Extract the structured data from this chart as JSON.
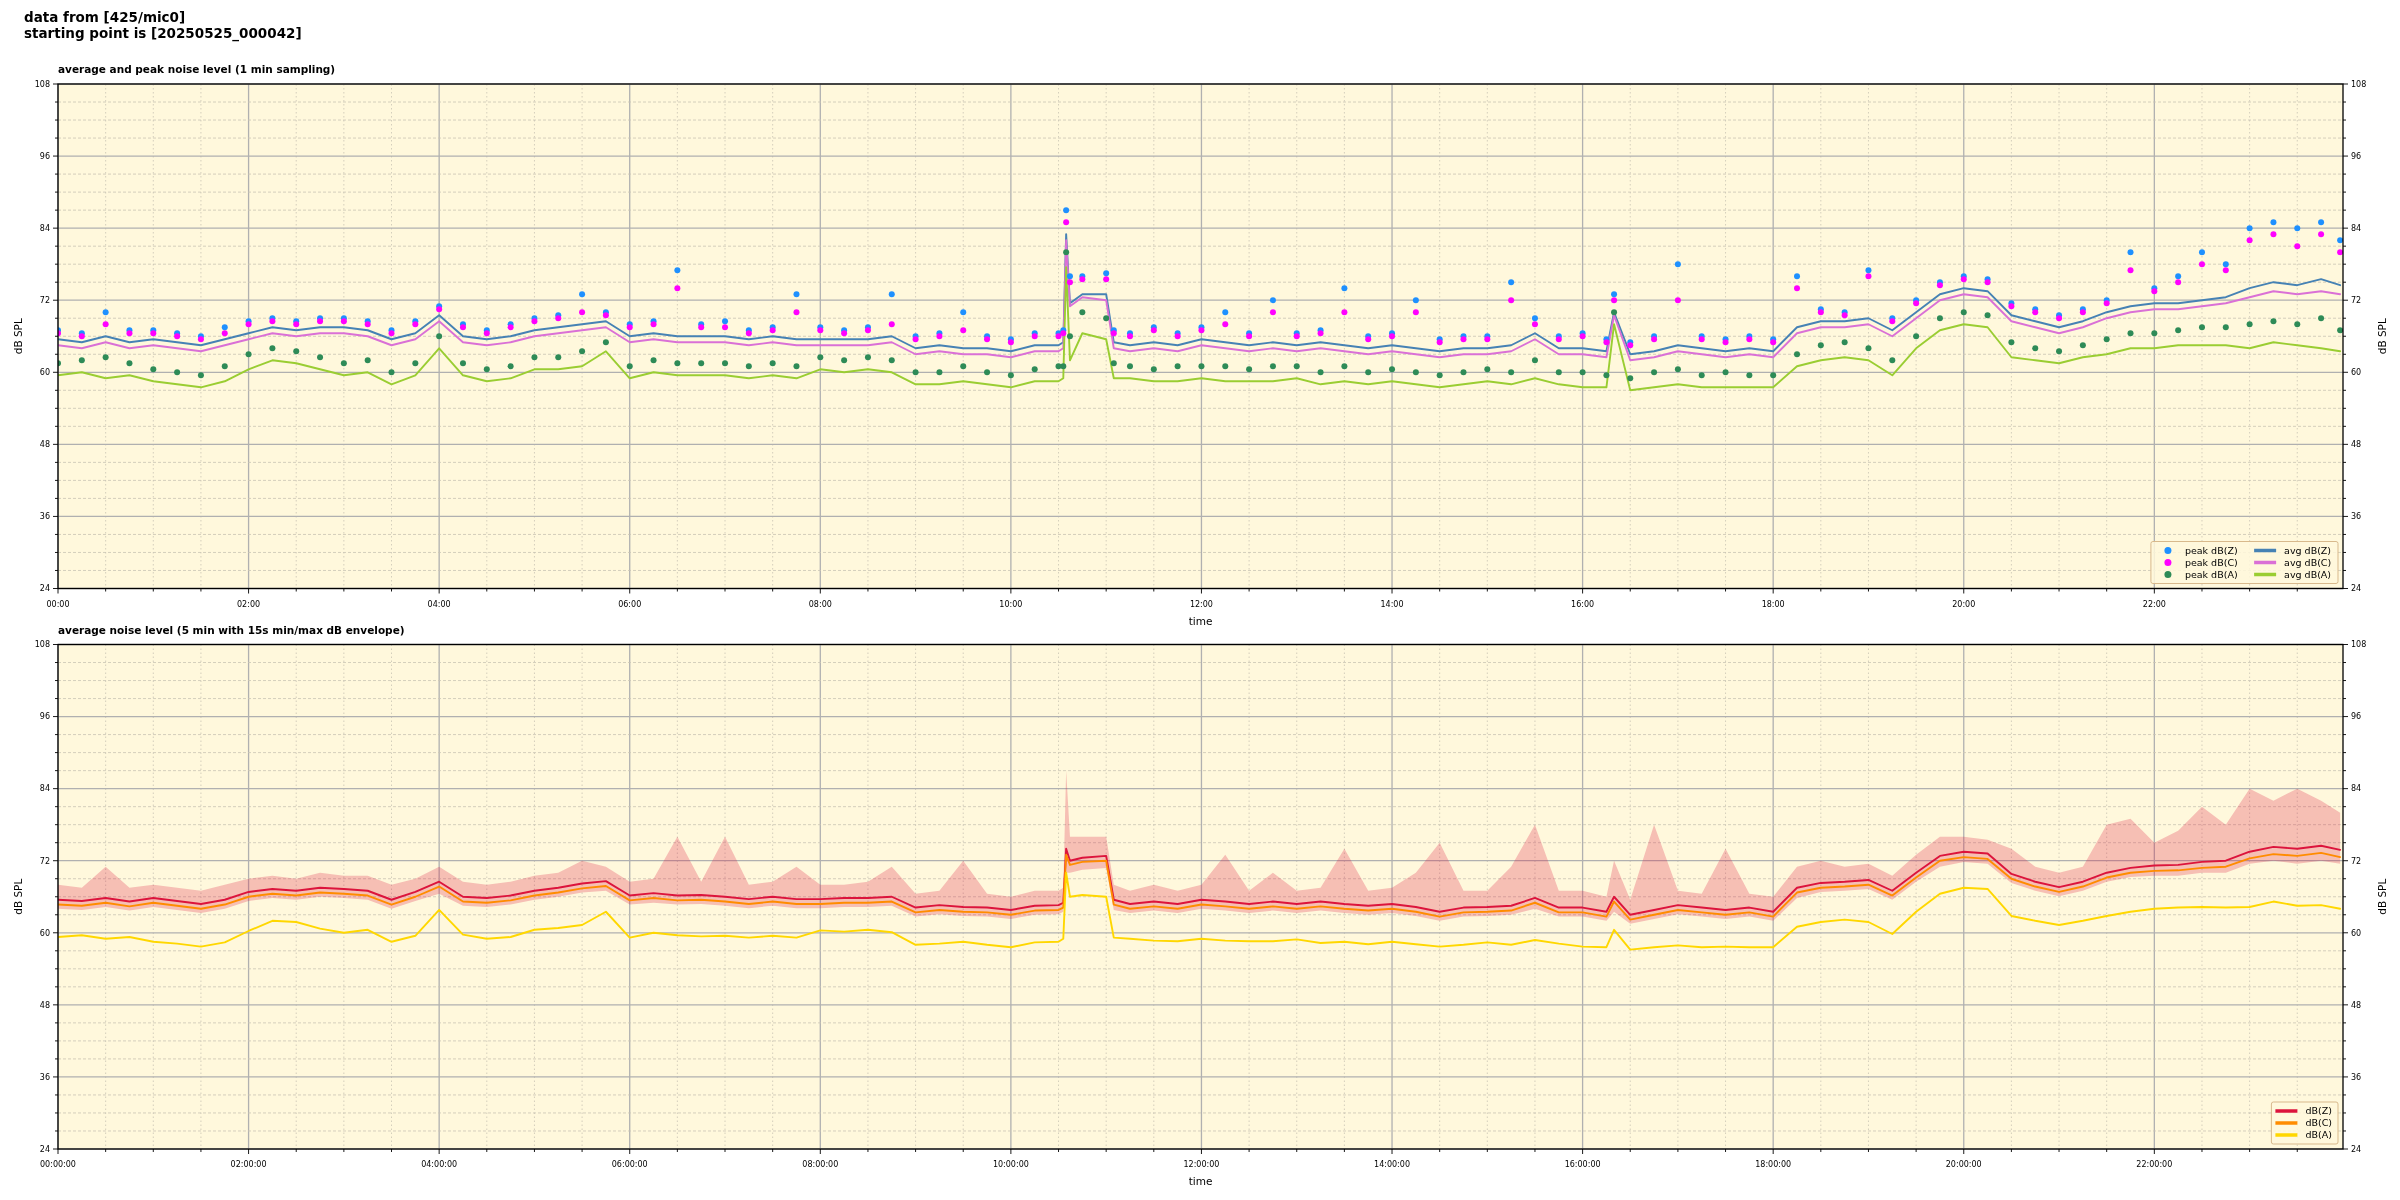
{
  "chart_data": [
    {
      "type": "line",
      "title": "average and peak noise level (1 min sampling)",
      "annotations": [
        "data from [425/mic0]",
        "starting point is [20250525_000042]"
      ],
      "xlabel": "time",
      "ylabel": "dB SPL",
      "y2label": "dB SPL",
      "xlim": [
        0,
        23.98
      ],
      "xticks": [
        {
          "value": 0,
          "label": "00:00"
        },
        {
          "value": 0.5,
          "label": null
        },
        {
          "value": 1,
          "label": null
        },
        {
          "value": 1.5,
          "label": null
        },
        {
          "value": 2,
          "label": "02:00"
        },
        {
          "value": 2.5,
          "label": null
        },
        {
          "value": 3,
          "label": null
        },
        {
          "value": 3.5,
          "label": null
        },
        {
          "value": 4,
          "label": "04:00"
        },
        {
          "value": 4.5,
          "label": null
        },
        {
          "value": 5,
          "label": null
        },
        {
          "value": 5.5,
          "label": null
        },
        {
          "value": 6,
          "label": "06:00"
        },
        {
          "value": 6.5,
          "label": null
        },
        {
          "value": 7,
          "label": null
        },
        {
          "value": 7.5,
          "label": null
        },
        {
          "value": 8,
          "label": "08:00"
        },
        {
          "value": 8.5,
          "label": null
        },
        {
          "value": 9,
          "label": null
        },
        {
          "value": 9.5,
          "label": null
        },
        {
          "value": 10,
          "label": "10:00"
        },
        {
          "value": 10.5,
          "label": null
        },
        {
          "value": 11,
          "label": null
        },
        {
          "value": 11.5,
          "label": null
        },
        {
          "value": 12,
          "label": "12:00"
        },
        {
          "value": 12.5,
          "label": null
        },
        {
          "value": 13,
          "label": null
        },
        {
          "value": 13.5,
          "label": null
        },
        {
          "value": 14,
          "label": "14:00"
        },
        {
          "value": 14.5,
          "label": null
        },
        {
          "value": 15,
          "label": null
        },
        {
          "value": 15.5,
          "label": null
        },
        {
          "value": 16,
          "label": "16:00"
        },
        {
          "value": 16.5,
          "label": null
        },
        {
          "value": 17,
          "label": null
        },
        {
          "value": 17.5,
          "label": null
        },
        {
          "value": 18,
          "label": "18:00"
        },
        {
          "value": 18.5,
          "label": null
        },
        {
          "value": 19,
          "label": null
        },
        {
          "value": 19.5,
          "label": null
        },
        {
          "value": 20,
          "label": "20:00"
        },
        {
          "value": 20.5,
          "label": null
        },
        {
          "value": 21,
          "label": null
        },
        {
          "value": 21.5,
          "label": null
        },
        {
          "value": 22,
          "label": "22:00"
        },
        {
          "value": 22.5,
          "label": null
        },
        {
          "value": 23,
          "label": null
        },
        {
          "value": 23.5,
          "label": null
        }
      ],
      "ylim": [
        24,
        108
      ],
      "yticks": [
        24,
        {
          "value": 27,
          "label": null
        },
        {
          "value": 30,
          "label": null
        },
        {
          "value": 33,
          "label": null
        },
        36,
        {
          "value": 39,
          "label": null
        },
        {
          "value": 42,
          "label": null
        },
        {
          "value": 45,
          "label": null
        },
        48,
        {
          "value": 51,
          "label": null
        },
        {
          "value": 54,
          "label": null
        },
        {
          "value": 57,
          "label": null
        },
        60,
        {
          "value": 63,
          "label": null
        },
        {
          "value": 66,
          "label": null
        },
        {
          "value": 69,
          "label": null
        },
        72,
        {
          "value": 75,
          "label": null
        },
        {
          "value": 78,
          "label": null
        },
        {
          "value": 81,
          "label": null
        },
        84,
        {
          "value": 87,
          "label": null
        },
        {
          "value": 90,
          "label": null
        },
        {
          "value": 93,
          "label": null
        },
        96,
        {
          "value": 99,
          "label": null
        },
        {
          "value": 102,
          "label": null
        },
        {
          "value": 105,
          "label": null
        },
        108
      ],
      "y2lim": [
        24,
        108
      ],
      "y2ticks": [
        24,
        {
          "value": 27,
          "label": null
        },
        {
          "value": 30,
          "label": null
        },
        {
          "value": 33,
          "label": null
        },
        36,
        {
          "value": 39,
          "label": null
        },
        {
          "value": 42,
          "label": null
        },
        {
          "value": 45,
          "label": null
        },
        48,
        {
          "value": 51,
          "label": null
        },
        {
          "value": 54,
          "label": null
        },
        {
          "value": 57,
          "label": null
        },
        60,
        {
          "value": 63,
          "label": null
        },
        {
          "value": 66,
          "label": null
        },
        {
          "value": 69,
          "label": null
        },
        72,
        {
          "value": 75,
          "label": null
        },
        {
          "value": 78,
          "label": null
        },
        {
          "value": 81,
          "label": null
        },
        84,
        {
          "value": 87,
          "label": null
        },
        {
          "value": 90,
          "label": null
        },
        {
          "value": 93,
          "label": null
        },
        96,
        {
          "value": 99,
          "label": null
        },
        {
          "value": 102,
          "label": null
        },
        {
          "value": 105,
          "label": null
        },
        108
      ],
      "grid": true,
      "legend": "bottom right",
      "x": [
        0,
        0.25,
        0.5,
        0.75,
        1,
        1.25,
        1.5,
        1.75,
        2,
        2.25,
        2.5,
        2.75,
        3,
        3.25,
        3.5,
        3.75,
        4,
        4.25,
        4.5,
        4.75,
        5,
        5.25,
        5.5,
        5.75,
        6,
        6.25,
        6.5,
        6.75,
        7,
        7.25,
        7.5,
        7.75,
        8,
        8.25,
        8.5,
        8.75,
        9,
        9.25,
        9.5,
        9.75,
        10,
        10.25,
        10.5,
        10.55,
        10.58,
        10.62,
        10.75,
        11,
        11.08,
        11.25,
        11.5,
        11.75,
        12,
        12.25,
        12.5,
        12.75,
        13,
        13.25,
        13.5,
        13.75,
        14,
        14.25,
        14.5,
        14.75,
        15,
        15.25,
        15.5,
        15.75,
        16,
        16.25,
        16.33,
        16.5,
        16.75,
        17,
        17.25,
        17.5,
        17.75,
        18,
        18.25,
        18.5,
        18.75,
        19,
        19.25,
        19.5,
        19.75,
        20,
        20.25,
        20.5,
        20.75,
        21,
        21.25,
        21.5,
        21.75,
        22,
        22.25,
        22.5,
        22.75,
        23,
        23.25,
        23.5,
        23.75,
        23.95
      ],
      "series": [
        {
          "name": "peak dB(Z)",
          "type": "scatter",
          "marker": "circle",
          "color": "#1e90ff",
          "values": [
            67,
            66.5,
            70,
            67,
            67,
            66.5,
            66,
            67.5,
            68.5,
            69,
            68.5,
            69,
            69,
            68.5,
            67,
            68.5,
            71,
            68,
            67,
            68,
            69,
            69.5,
            73,
            70,
            68,
            68.5,
            77,
            68,
            68.5,
            67,
            67.5,
            73,
            67.5,
            67,
            67.5,
            73,
            66,
            66.5,
            70,
            66,
            65.5,
            66.5,
            66.5,
            67,
            87,
            76,
            76,
            76.5,
            67,
            66.5,
            67.5,
            66.5,
            67.5,
            70,
            66.5,
            72,
            66.5,
            67,
            74,
            66,
            66.5,
            72,
            65.5,
            66,
            66,
            75,
            69,
            66,
            66.5,
            65.5,
            73,
            65,
            66,
            78,
            66,
            65.5,
            66,
            65.5,
            76,
            70.5,
            70,
            77,
            69,
            72,
            75,
            76,
            75.5,
            71.5,
            70.5,
            69.5,
            70.5,
            72,
            80,
            74,
            76,
            80,
            78,
            84,
            85,
            84,
            85,
            82
          ]
        },
        {
          "name": "peak dB(C)",
          "type": "scatter",
          "marker": "circle",
          "color": "#ff00ff",
          "values": [
            66.5,
            66,
            68,
            66.5,
            66.5,
            66,
            65.5,
            66.5,
            68,
            68.5,
            68,
            68.5,
            68.5,
            68,
            66.5,
            68,
            70.5,
            67.5,
            66.5,
            67.5,
            68.5,
            69,
            70,
            69.5,
            67.5,
            68,
            74,
            67.5,
            67.5,
            66.5,
            67,
            70,
            67,
            66.5,
            67,
            68,
            65.5,
            66,
            67,
            65.5,
            65,
            66,
            66,
            66.5,
            85,
            75,
            75.5,
            75.5,
            66.5,
            66,
            67,
            66,
            67,
            68,
            66,
            70,
            66,
            66.5,
            70,
            65.5,
            66,
            70,
            65,
            65.5,
            65.5,
            72,
            68,
            65.5,
            66,
            65,
            72,
            64.5,
            65.5,
            72,
            65.5,
            65,
            65.5,
            65,
            74,
            70,
            69.5,
            76,
            68.5,
            71.5,
            74.5,
            75.5,
            75,
            71,
            70,
            69,
            70,
            71.5,
            77,
            73.5,
            75,
            78,
            77,
            82,
            83,
            81,
            83,
            80
          ]
        },
        {
          "name": "peak dB(A)",
          "type": "scatter",
          "marker": "circle",
          "color": "#2e8b57",
          "values": [
            61.5,
            62,
            62.5,
            61.5,
            60.5,
            60,
            59.5,
            61,
            63,
            64,
            63.5,
            62.5,
            61.5,
            62,
            60,
            61.5,
            66,
            61.5,
            60.5,
            61,
            62.5,
            62.5,
            63.5,
            65,
            61,
            62,
            61.5,
            61.5,
            61.5,
            61,
            61.5,
            61,
            62.5,
            62,
            62.5,
            62,
            60,
            60,
            61,
            60,
            59.5,
            60.5,
            61,
            61,
            80,
            66,
            70,
            69,
            61.5,
            61,
            60.5,
            61,
            61,
            61,
            60.5,
            61,
            61,
            60,
            61,
            60,
            60.5,
            60,
            59.5,
            60,
            60.5,
            60,
            62,
            60,
            60,
            59.5,
            70,
            59,
            60,
            60.5,
            59.5,
            60,
            59.5,
            59.5,
            63,
            64.5,
            65,
            64,
            62,
            66,
            69,
            70,
            69.5,
            65,
            64,
            63.5,
            64.5,
            65.5,
            66.5,
            66.5,
            67,
            67.5,
            67.5,
            68,
            68.5,
            68,
            69,
            67
          ]
        },
        {
          "name": "avg dB(Z)",
          "color": "#4682b4",
          "values": [
            65.5,
            65,
            66,
            65,
            65.5,
            65,
            64.5,
            65.5,
            66.5,
            67.5,
            67,
            67.5,
            67.5,
            67,
            65.5,
            66.5,
            69.5,
            66,
            65.5,
            66,
            67,
            67.5,
            68,
            68.5,
            66,
            66.5,
            66,
            66,
            66,
            65.5,
            66,
            65.5,
            65.5,
            65.5,
            65.5,
            66,
            64,
            64.5,
            64,
            64,
            63.5,
            64.5,
            64.5,
            65,
            83,
            71.5,
            73,
            73,
            65,
            64.5,
            65,
            64.5,
            65.5,
            65,
            64.5,
            65,
            64.5,
            65,
            64.5,
            64,
            64.5,
            64,
            63.5,
            64,
            64,
            64.5,
            66.5,
            64,
            64,
            63.5,
            70,
            63,
            63.5,
            64.5,
            64,
            63.5,
            64,
            63.5,
            67.5,
            68.5,
            68.5,
            69,
            67,
            70,
            73,
            74,
            73.5,
            69.5,
            68.5,
            67.5,
            68.5,
            70,
            71,
            71.5,
            71.5,
            72,
            72.5,
            74,
            75,
            74.5,
            75.5,
            74.5
          ]
        },
        {
          "name": "avg dB(C)",
          "color": "#da70d6",
          "values": [
            64.5,
            64,
            65,
            64,
            64.5,
            64,
            63.5,
            64.5,
            65.5,
            66.5,
            66,
            66.5,
            66.5,
            66,
            64.5,
            65.5,
            68.5,
            65,
            64.5,
            65,
            66,
            66.5,
            67,
            67.5,
            65,
            65.5,
            65,
            65,
            65,
            64.5,
            65,
            64.5,
            64.5,
            64.5,
            64.5,
            65,
            63,
            63.5,
            63,
            63,
            62.5,
            63.5,
            63.5,
            64,
            82,
            71,
            72.5,
            72,
            64,
            63.5,
            64,
            63.5,
            64.5,
            64,
            63.5,
            64,
            63.5,
            64,
            63.5,
            63,
            63.5,
            63,
            62.5,
            63,
            63,
            63.5,
            65.5,
            63,
            63,
            62.5,
            69.5,
            62,
            62.5,
            63.5,
            63,
            62.5,
            63,
            62.5,
            66.5,
            67.5,
            67.5,
            68,
            66,
            69,
            72,
            73,
            72.5,
            68.5,
            67.5,
            66.5,
            67.5,
            69,
            70,
            70.5,
            70.5,
            71,
            71.5,
            72.5,
            73.5,
            73,
            73.5,
            73
          ]
        },
        {
          "name": "avg dB(A)",
          "color": "#9acd32",
          "values": [
            59.5,
            60,
            59,
            59.5,
            58.5,
            58,
            57.5,
            58.5,
            60.5,
            62,
            61.5,
            60.5,
            59.5,
            60,
            58,
            59.5,
            64,
            59.5,
            58.5,
            59,
            60.5,
            60.5,
            61,
            63.5,
            59,
            60,
            59.5,
            59.5,
            59.5,
            59,
            59.5,
            59,
            60.5,
            60,
            60.5,
            60,
            58,
            58,
            58.5,
            58,
            57.5,
            58.5,
            58.5,
            59,
            77.5,
            62,
            66.5,
            65.5,
            59,
            59,
            58.5,
            58.5,
            59,
            58.5,
            58.5,
            58.5,
            59,
            58,
            58.5,
            58,
            58.5,
            58,
            57.5,
            58,
            58.5,
            58,
            59,
            58,
            57.5,
            57.5,
            68,
            57,
            57.5,
            58,
            57.5,
            57.5,
            57.5,
            57.5,
            61,
            62,
            62.5,
            62,
            59.5,
            64,
            67,
            68,
            67.5,
            62.5,
            62,
            61.5,
            62.5,
            63,
            64,
            64,
            64.5,
            64.5,
            64.5,
            64,
            65,
            64.5,
            64,
            63.5
          ]
        }
      ]
    },
    {
      "type": "line",
      "title": "average noise level (5 min with 15s min/max dB envelope)",
      "xlabel": "time",
      "ylabel": "dB SPL",
      "y2label": "dB SPL",
      "xlim": [
        0,
        23.98
      ],
      "xticks": [
        {
          "value": 0,
          "label": "00:00:00"
        },
        {
          "value": 0.5,
          "label": null
        },
        {
          "value": 1,
          "label": null
        },
        {
          "value": 1.5,
          "label": null
        },
        {
          "value": 2,
          "label": "02:00:00"
        },
        {
          "value": 2.5,
          "label": null
        },
        {
          "value": 3,
          "label": null
        },
        {
          "value": 3.5,
          "label": null
        },
        {
          "value": 4,
          "label": "04:00:00"
        },
        {
          "value": 4.5,
          "label": null
        },
        {
          "value": 5,
          "label": null
        },
        {
          "value": 5.5,
          "label": null
        },
        {
          "value": 6,
          "label": "06:00:00"
        },
        {
          "value": 6.5,
          "label": null
        },
        {
          "value": 7,
          "label": null
        },
        {
          "value": 7.5,
          "label": null
        },
        {
          "value": 8,
          "label": "08:00:00"
        },
        {
          "value": 8.5,
          "label": null
        },
        {
          "value": 9,
          "label": null
        },
        {
          "value": 9.5,
          "label": null
        },
        {
          "value": 10,
          "label": "10:00:00"
        },
        {
          "value": 10.5,
          "label": null
        },
        {
          "value": 11,
          "label": null
        },
        {
          "value": 11.5,
          "label": null
        },
        {
          "value": 12,
          "label": "12:00:00"
        },
        {
          "value": 12.5,
          "label": null
        },
        {
          "value": 13,
          "label": null
        },
        {
          "value": 13.5,
          "label": null
        },
        {
          "value": 14,
          "label": "14:00:00"
        },
        {
          "value": 14.5,
          "label": null
        },
        {
          "value": 15,
          "label": null
        },
        {
          "value": 15.5,
          "label": null
        },
        {
          "value": 16,
          "label": "16:00:00"
        },
        {
          "value": 16.5,
          "label": null
        },
        {
          "value": 17,
          "label": null
        },
        {
          "value": 17.5,
          "label": null
        },
        {
          "value": 18,
          "label": "18:00:00"
        },
        {
          "value": 18.5,
          "label": null
        },
        {
          "value": 19,
          "label": null
        },
        {
          "value": 19.5,
          "label": null
        },
        {
          "value": 20,
          "label": "20:00:00"
        },
        {
          "value": 20.5,
          "label": null
        },
        {
          "value": 21,
          "label": null
        },
        {
          "value": 21.5,
          "label": null
        },
        {
          "value": 22,
          "label": "22:00:00"
        },
        {
          "value": 22.5,
          "label": null
        },
        {
          "value": 23,
          "label": null
        },
        {
          "value": 23.5,
          "label": null
        }
      ],
      "ylim": [
        24,
        108
      ],
      "yticks": [
        24,
        {
          "value": 27,
          "label": null
        },
        {
          "value": 30,
          "label": null
        },
        {
          "value": 33,
          "label": null
        },
        36,
        {
          "value": 39,
          "label": null
        },
        {
          "value": 42,
          "label": null
        },
        {
          "value": 45,
          "label": null
        },
        48,
        {
          "value": 51,
          "label": null
        },
        {
          "value": 54,
          "label": null
        },
        {
          "value": 57,
          "label": null
        },
        60,
        {
          "value": 63,
          "label": null
        },
        {
          "value": 66,
          "label": null
        },
        {
          "value": 69,
          "label": null
        },
        72,
        {
          "value": 75,
          "label": null
        },
        {
          "value": 78,
          "label": null
        },
        {
          "value": 81,
          "label": null
        },
        84,
        {
          "value": 87,
          "label": null
        },
        {
          "value": 90,
          "label": null
        },
        {
          "value": 93,
          "label": null
        },
        96,
        {
          "value": 99,
          "label": null
        },
        {
          "value": 102,
          "label": null
        },
        {
          "value": 105,
          "label": null
        },
        108
      ],
      "y2lim": [
        24,
        108
      ],
      "y2ticks": [
        24,
        {
          "value": 27,
          "label": null
        },
        {
          "value": 30,
          "label": null
        },
        {
          "value": 33,
          "label": null
        },
        36,
        {
          "value": 39,
          "label": null
        },
        {
          "value": 42,
          "label": null
        },
        {
          "value": 45,
          "label": null
        },
        48,
        {
          "value": 51,
          "label": null
        },
        {
          "value": 54,
          "label": null
        },
        {
          "value": 57,
          "label": null
        },
        60,
        {
          "value": 63,
          "label": null
        },
        {
          "value": 66,
          "label": null
        },
        {
          "value": 69,
          "label": null
        },
        72,
        {
          "value": 75,
          "label": null
        },
        {
          "value": 78,
          "label": null
        },
        {
          "value": 81,
          "label": null
        },
        84,
        {
          "value": 87,
          "label": null
        },
        {
          "value": 90,
          "label": null
        },
        {
          "value": 93,
          "label": null
        },
        96,
        {
          "value": 99,
          "label": null
        },
        {
          "value": 102,
          "label": null
        },
        {
          "value": 105,
          "label": null
        },
        108
      ],
      "grid": true,
      "legend": "bottom right",
      "x": [
        0,
        0.25,
        0.5,
        0.75,
        1,
        1.25,
        1.5,
        1.75,
        2,
        2.25,
        2.5,
        2.75,
        3,
        3.25,
        3.5,
        3.75,
        4,
        4.25,
        4.5,
        4.75,
        5,
        5.25,
        5.5,
        5.75,
        6,
        6.25,
        6.5,
        6.75,
        7,
        7.25,
        7.5,
        7.75,
        8,
        8.25,
        8.5,
        8.75,
        9,
        9.25,
        9.5,
        9.75,
        10,
        10.25,
        10.5,
        10.55,
        10.58,
        10.62,
        10.75,
        11,
        11.08,
        11.25,
        11.5,
        11.75,
        12,
        12.25,
        12.5,
        12.75,
        13,
        13.25,
        13.5,
        13.75,
        14,
        14.25,
        14.5,
        14.75,
        15,
        15.25,
        15.5,
        15.75,
        16,
        16.25,
        16.33,
        16.5,
        16.75,
        17,
        17.25,
        17.5,
        17.75,
        18,
        18.25,
        18.5,
        18.75,
        19,
        19.25,
        19.5,
        19.75,
        20,
        20.25,
        20.5,
        20.75,
        21,
        21.25,
        21.5,
        21.75,
        22,
        22.25,
        22.5,
        22.75,
        23,
        23.25,
        23.5,
        23.75,
        23.95
      ],
      "series": [
        {
          "name": "dB(Z)",
          "color": "#dc143c",
          "values": [
            65.5,
            65.3,
            65.8,
            65.2,
            65.8,
            65.3,
            64.8,
            65.5,
            66.8,
            67.3,
            67,
            67.5,
            67.3,
            67,
            65.5,
            66.8,
            68.5,
            66,
            65.8,
            66.2,
            67,
            67.5,
            68.2,
            68.6,
            66.2,
            66.6,
            66.2,
            66.3,
            66,
            65.6,
            66,
            65.6,
            65.6,
            65.8,
            65.8,
            66,
            64.2,
            64.6,
            64.3,
            64.2,
            63.8,
            64.5,
            64.6,
            65,
            74,
            72,
            72.5,
            72.8,
            65.5,
            64.8,
            65.2,
            64.8,
            65.5,
            65.2,
            64.8,
            65.2,
            64.8,
            65.2,
            64.8,
            64.5,
            64.8,
            64.3,
            63.5,
            64.2,
            64.3,
            64.5,
            65.8,
            64.2,
            64.2,
            63.5,
            66,
            63,
            63.8,
            64.6,
            64.2,
            63.8,
            64.2,
            63.5,
            67.5,
            68.3,
            68.5,
            68.8,
            67,
            70,
            72.8,
            73.5,
            73.2,
            69.8,
            68.5,
            67.6,
            68.5,
            70,
            70.8,
            71.2,
            71.3,
            71.8,
            72,
            73.5,
            74.3,
            74,
            74.5,
            73.8
          ],
          "lower": [
            64,
            63.8,
            64.3,
            63.7,
            64.3,
            63.8,
            63.3,
            64,
            65.3,
            65.8,
            65.5,
            66,
            65.8,
            65.5,
            64,
            65.3,
            66.5,
            64.5,
            64.3,
            64.7,
            65.5,
            66,
            66.7,
            67,
            64.7,
            65,
            64.7,
            64.8,
            64.5,
            64.1,
            64.5,
            64.1,
            64.1,
            64.3,
            64.3,
            64.5,
            62.7,
            63.1,
            62.8,
            62.7,
            62.3,
            63,
            63.1,
            63.5,
            70,
            70,
            70.5,
            70.8,
            63.8,
            63.3,
            63.7,
            63.3,
            64,
            63.7,
            63.3,
            63.7,
            63.3,
            63.7,
            63.3,
            63,
            63.3,
            62.8,
            62,
            62.7,
            62.8,
            63,
            64,
            62.7,
            62.7,
            62,
            63.5,
            61.5,
            62.3,
            63.1,
            62.7,
            62.3,
            62.7,
            62,
            65.8,
            66.8,
            67,
            67.3,
            65.5,
            68.5,
            71,
            71.8,
            71.5,
            68.3,
            67,
            66.1,
            67,
            68.5,
            69.3,
            69.5,
            69.5,
            70,
            70,
            71.5,
            72,
            71.5,
            72,
            71.5
          ],
          "upper": [
            68,
            67.5,
            71,
            67.5,
            68,
            67.5,
            67,
            68,
            69,
            69.5,
            69,
            70,
            69.5,
            69.5,
            68,
            69,
            71,
            68.5,
            68,
            68.5,
            69.5,
            70,
            72,
            71,
            68.5,
            69,
            76,
            68.5,
            76,
            68,
            68.5,
            71,
            68,
            68,
            68.5,
            71,
            66.5,
            67,
            72,
            66.5,
            66,
            67,
            67,
            67.5,
            87,
            76,
            76,
            76,
            68,
            67,
            68,
            67,
            68,
            73,
            67,
            70,
            67,
            67.5,
            74,
            67,
            67.5,
            70,
            75,
            67,
            67,
            71,
            78,
            67,
            67,
            66,
            72,
            65.5,
            78,
            67,
            66.5,
            74,
            66.5,
            66,
            71,
            72,
            71,
            71.5,
            69.5,
            73,
            76,
            76,
            75.5,
            74,
            71,
            70,
            71,
            78,
            79,
            75,
            77,
            81,
            78,
            84,
            82,
            84,
            82,
            80
          ]
        },
        {
          "name": "dB(C)",
          "color": "#ff8c00",
          "values": [
            64.7,
            64.5,
            65,
            64.4,
            65,
            64.5,
            64,
            64.7,
            66,
            66.5,
            66.2,
            66.7,
            66.5,
            66.2,
            64.7,
            66,
            67.7,
            65.2,
            65,
            65.4,
            66.2,
            66.7,
            67.4,
            67.8,
            65.4,
            65.8,
            65.4,
            65.5,
            65.2,
            64.8,
            65.2,
            64.8,
            64.8,
            65,
            65,
            65.2,
            63.4,
            63.8,
            63.5,
            63.4,
            63,
            63.7,
            63.8,
            64.2,
            73,
            71.3,
            71.8,
            72,
            64.7,
            64,
            64.4,
            64,
            64.7,
            64.4,
            64,
            64.4,
            64,
            64.4,
            64,
            63.7,
            64,
            63.5,
            62.7,
            63.4,
            63.5,
            63.7,
            65,
            63.4,
            63.4,
            62.7,
            65.2,
            62.2,
            63,
            63.8,
            63.4,
            63,
            63.4,
            62.7,
            66.7,
            67.5,
            67.7,
            68,
            66.2,
            69.2,
            72,
            72.6,
            72.3,
            69,
            67.7,
            66.8,
            67.7,
            69.2,
            70,
            70.3,
            70.4,
            70.8,
            71,
            72.4,
            73.1,
            72.8,
            73.3,
            72.6
          ]
        },
        {
          "name": "dB(A)",
          "color": "#ffd700",
          "values": [
            59.3,
            59.6,
            59,
            59.3,
            58.5,
            58.2,
            57.7,
            58.4,
            60.3,
            62,
            61.8,
            60.7,
            60,
            60.5,
            58.5,
            59.5,
            63.8,
            59.7,
            59,
            59.3,
            60.5,
            60.8,
            61.3,
            63.5,
            59.2,
            60,
            59.6,
            59.4,
            59.5,
            59.2,
            59.5,
            59.2,
            60.4,
            60.2,
            60.5,
            60.1,
            58,
            58.2,
            58.5,
            58,
            57.6,
            58.4,
            58.5,
            59,
            70,
            66,
            66.3,
            66,
            59.2,
            59,
            58.7,
            58.6,
            59,
            58.7,
            58.6,
            58.6,
            58.9,
            58.3,
            58.5,
            58.1,
            58.5,
            58.1,
            57.7,
            58,
            58.4,
            58,
            58.8,
            58.2,
            57.7,
            57.6,
            60.5,
            57.2,
            57.6,
            57.9,
            57.6,
            57.7,
            57.6,
            57.6,
            61,
            61.8,
            62.2,
            61.8,
            59.8,
            63.5,
            66.5,
            67.5,
            67.3,
            62.8,
            62,
            61.3,
            62,
            62.8,
            63.5,
            64,
            64.2,
            64.3,
            64.2,
            64.3,
            65.2,
            64.5,
            64.6,
            64
          ]
        }
      ]
    }
  ]
}
